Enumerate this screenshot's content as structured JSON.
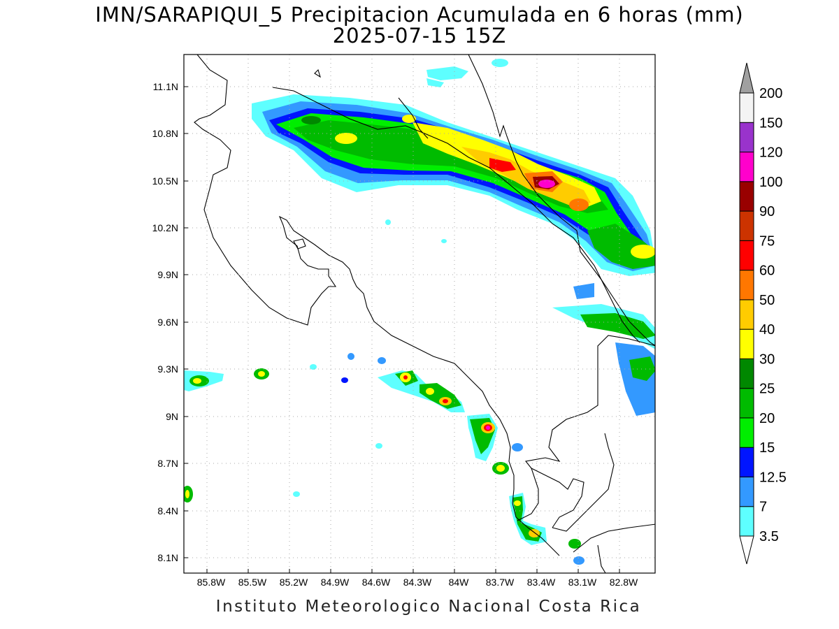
{
  "map": {
    "title_line1": "IMN/SARAPIQUI_5 Precipitacion Acumulada en 6 horas (mm)",
    "title_line2": "2025-07-15 15Z",
    "footer": "Instituto Meteorologico Nacional Costa Rica",
    "lon_labels": [
      "85.8W",
      "85.5W",
      "85.2W",
      "84.9W",
      "84.6W",
      "84.3W",
      "84W",
      "83.7W",
      "83.4W",
      "83.1W",
      "82.8W"
    ],
    "lat_labels": [
      "11.1N",
      "10.8N",
      "10.5N",
      "10.2N",
      "9.9N",
      "9.6N",
      "9.3N",
      "9N",
      "8.7N",
      "8.4N",
      "8.1N"
    ],
    "grid": "dotted"
  },
  "legend": {
    "labels": [
      "3.5",
      "7",
      "12.5",
      "15",
      "20",
      "25",
      "30",
      "40",
      "50",
      "60",
      "75",
      "90",
      "100",
      "120",
      "150",
      "200"
    ],
    "colors": [
      "#5effff",
      "#3399ff",
      "#0015ff",
      "#00ee00",
      "#00bb00",
      "#008800",
      "#ffff00",
      "#ffcc00",
      "#ff7700",
      "#ff0000",
      "#cc3300",
      "#990000",
      "#ff00cc",
      "#9933cc",
      "#f4f4f4",
      "#a0a0a0"
    ]
  }
}
